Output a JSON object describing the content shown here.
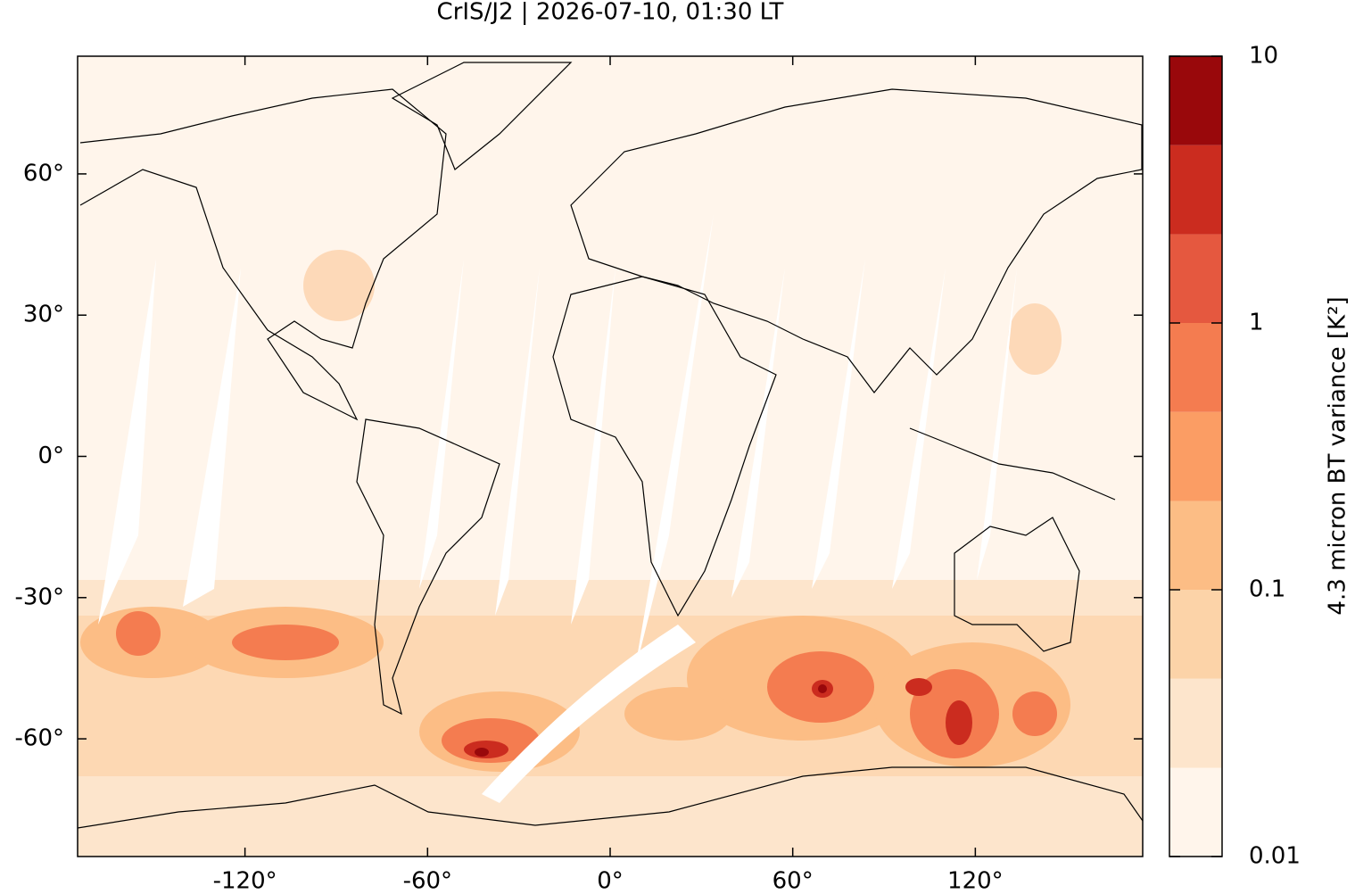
{
  "title": "CrIS/J2 | 2026-07-10, 01:30 LT",
  "map": {
    "xlim": [
      -175,
      175
    ],
    "ylim": [
      -85,
      85
    ],
    "xticks": [
      {
        "value": -120,
        "label": "-120°"
      },
      {
        "value": -60,
        "label": "-60°"
      },
      {
        "value": 0,
        "label": "0°"
      },
      {
        "value": 60,
        "label": "60°"
      },
      {
        "value": 120,
        "label": "120°"
      }
    ],
    "yticks": [
      {
        "value": -60,
        "label": "-60°"
      },
      {
        "value": -30,
        "label": "-30°"
      },
      {
        "value": 0,
        "label": "0°"
      },
      {
        "value": 30,
        "label": "30°"
      },
      {
        "value": 60,
        "label": "60°"
      }
    ]
  },
  "colorbar": {
    "label": "4.3 micron BT variance [K²]",
    "log": true,
    "lim": [
      0.01,
      10
    ],
    "levels": [
      0.01,
      0.0215,
      0.0464,
      0.1,
      0.215,
      0.464,
      1,
      2.15,
      4.64,
      10
    ],
    "colors": [
      "#fff5eb",
      "#fde5cc",
      "#fcd3a8",
      "#fcbd85",
      "#fb9d64",
      "#f47c50",
      "#e5583f",
      "#cb2c1f",
      "#99080b"
    ],
    "ticks": [
      0.01,
      0.1,
      1,
      10
    ]
  }
}
